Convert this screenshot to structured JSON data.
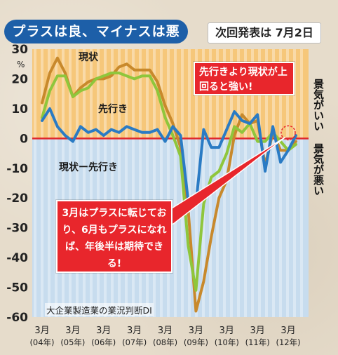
{
  "title": "プラスは良、マイナスは悪",
  "announcement": "次回発表は 7月2日",
  "callouts": {
    "top": "先行きより現状が上回ると強い!",
    "bottom": "3月はプラスに転じており、6月もプラスになれば、年後半は期待できる!"
  },
  "side_labels": {
    "good": "景気がいい",
    "bad": "景気が悪い"
  },
  "source_note": "大企業製造業の業況判断DI",
  "colors": {
    "current": "#c8892c",
    "outlook": "#8fc63c",
    "diff": "#2a7bc4",
    "zero_line": "#e0262c",
    "band_positive": "#f6c77a",
    "band_negative": "#c7dcee",
    "title_bg": "#1d5fa8"
  },
  "chart_data": {
    "type": "line",
    "title": "",
    "ylabel": "%",
    "ylim": [
      -60,
      30
    ],
    "yticks": [
      30,
      20,
      10,
      0,
      -10,
      -20,
      -30,
      -40,
      -50,
      -60
    ],
    "ytick_labels": [
      "30",
      "20",
      "10",
      "0",
      "-10",
      "-20",
      "-30",
      "-40",
      "-50",
      "-60"
    ],
    "xtick_labels": [
      {
        "month": "3月",
        "year": "(04年)"
      },
      {
        "month": "3月",
        "year": "(05年)"
      },
      {
        "month": "3月",
        "year": "(06年)"
      },
      {
        "month": "3月",
        "year": "(07年)"
      },
      {
        "month": "3月",
        "year": "(08年)"
      },
      {
        "month": "3月",
        "year": "(09年)"
      },
      {
        "month": "3月",
        "year": "(10年)"
      },
      {
        "month": "3月",
        "year": "(11年)"
      },
      {
        "month": "3月",
        "year": "(12年)"
      }
    ],
    "x": [
      2004.0,
      2004.25,
      2004.5,
      2004.75,
      2005.0,
      2005.25,
      2005.5,
      2005.75,
      2006.0,
      2006.25,
      2006.5,
      2006.75,
      2007.0,
      2007.25,
      2007.5,
      2007.75,
      2008.0,
      2008.25,
      2008.5,
      2008.75,
      2009.0,
      2009.25,
      2009.5,
      2009.75,
      2010.0,
      2010.25,
      2010.5,
      2010.75,
      2011.0,
      2011.25,
      2011.5,
      2011.75,
      2012.0,
      2012.25
    ],
    "series": [
      {
        "name": "現状",
        "color": "#c8892c",
        "values": [
          12,
          22,
          27,
          22,
          14,
          17,
          19,
          20,
          20,
          21,
          24,
          25,
          23,
          23,
          23,
          19,
          11,
          5,
          -3,
          -24,
          -58,
          -48,
          -33,
          -20,
          -14,
          1,
          8,
          5,
          6,
          -9,
          2,
          -4,
          -4,
          -1
        ]
      },
      {
        "name": "先行き",
        "color": "#8fc63c",
        "values": [
          7,
          16,
          21,
          21,
          14,
          16,
          17,
          20,
          21,
          22,
          22,
          21,
          20,
          21,
          21,
          16,
          7,
          1,
          -6,
          -36,
          -51,
          -22,
          -13,
          -11,
          -5,
          4,
          2,
          5,
          -1,
          -1,
          2,
          -1,
          -4,
          -2
        ]
      },
      {
        "name": "現状ー先行き",
        "color": "#2a7bc4",
        "values": [
          6,
          10,
          4,
          1,
          -1,
          4,
          2,
          3,
          1,
          3,
          2,
          4,
          3,
          2,
          2,
          3,
          -1,
          4,
          1,
          -21,
          -22,
          3,
          -3,
          -3,
          3,
          9,
          6,
          5,
          8,
          -11,
          4,
          -8,
          -4,
          1
        ]
      }
    ],
    "series_labels": [
      "現状",
      "先行き",
      "現状ー先行き"
    ],
    "zero_line": 0
  }
}
